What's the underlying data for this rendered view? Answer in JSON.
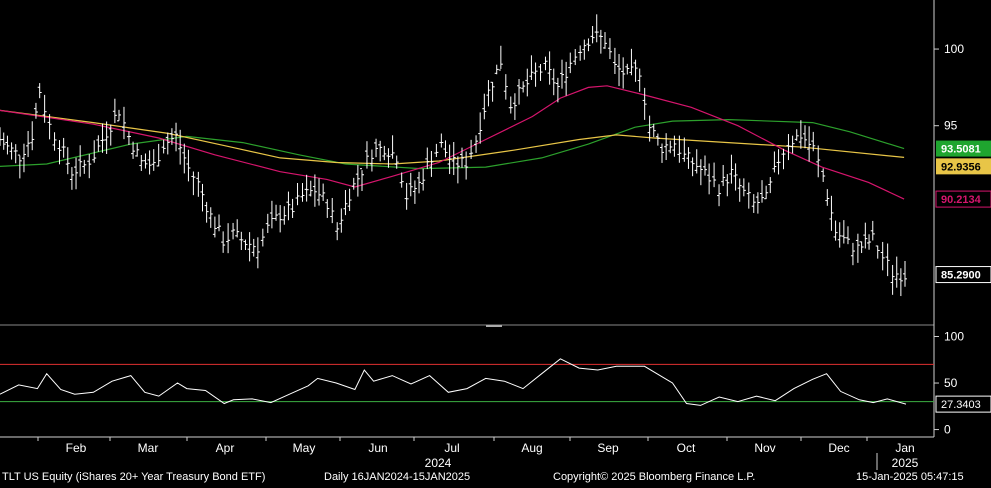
{
  "chart_data": [
    {
      "type": "line",
      "subtype": "ohlc-bars-with-moving-averages",
      "ylim": [
        82,
        103.2
      ],
      "y_ticks": [
        100,
        95
      ],
      "x_range": [
        "2024-01-16",
        "2025-01-15"
      ],
      "month_labels": [
        "Feb",
        "Mar",
        "Apr",
        "May",
        "Jun",
        "Jul",
        "Aug",
        "Sep",
        "Oct",
        "Nov",
        "Dec",
        "Jan"
      ],
      "year_labels": [
        "2024",
        "2025"
      ],
      "grid": false,
      "price_close": [
        [
          "2024-01-16",
          94.1
        ],
        [
          "2024-01-19",
          93.6
        ],
        [
          "2024-01-24",
          93.0
        ],
        [
          "2024-01-29",
          94.4
        ],
        [
          "2024-02-01",
          97.3
        ],
        [
          "2024-02-05",
          95.0
        ],
        [
          "2024-02-09",
          93.8
        ],
        [
          "2024-02-14",
          92.0
        ],
        [
          "2024-02-19",
          92.4
        ],
        [
          "2024-02-23",
          93.1
        ],
        [
          "2024-02-28",
          94.6
        ],
        [
          "2024-03-04",
          96.0
        ],
        [
          "2024-03-08",
          94.3
        ],
        [
          "2024-03-13",
          92.6
        ],
        [
          "2024-03-18",
          92.4
        ],
        [
          "2024-03-22",
          93.8
        ],
        [
          "2024-03-27",
          94.3
        ],
        [
          "2024-04-01",
          92.2
        ],
        [
          "2024-04-05",
          91.2
        ],
        [
          "2024-04-10",
          89.1
        ],
        [
          "2024-04-15",
          87.5
        ],
        [
          "2024-04-19",
          87.9
        ],
        [
          "2024-04-24",
          87.4
        ],
        [
          "2024-04-29",
          87.1
        ],
        [
          "2024-05-03",
          88.3
        ],
        [
          "2024-05-08",
          89.2
        ],
        [
          "2024-05-13",
          89.6
        ],
        [
          "2024-05-17",
          90.4
        ],
        [
          "2024-05-22",
          90.8
        ],
        [
          "2024-05-27",
          90.0
        ],
        [
          "2024-05-31",
          88.3
        ],
        [
          "2024-06-05",
          90.6
        ],
        [
          "2024-06-10",
          92.1
        ],
        [
          "2024-06-14",
          93.3
        ],
        [
          "2024-06-19",
          93.6
        ],
        [
          "2024-06-24",
          93.0
        ],
        [
          "2024-06-28",
          90.4
        ],
        [
          "2024-07-03",
          91.2
        ],
        [
          "2024-07-08",
          93.0
        ],
        [
          "2024-07-12",
          93.7
        ],
        [
          "2024-07-17",
          92.5
        ],
        [
          "2024-07-22",
          92.6
        ],
        [
          "2024-07-26",
          94.1
        ],
        [
          "2024-07-31",
          97.2
        ],
        [
          "2024-08-05",
          99.2
        ],
        [
          "2024-08-09",
          96.4
        ],
        [
          "2024-08-14",
          97.4
        ],
        [
          "2024-08-19",
          98.4
        ],
        [
          "2024-08-23",
          98.8
        ],
        [
          "2024-08-28",
          97.5
        ],
        [
          "2024-09-02",
          99.1
        ],
        [
          "2024-09-06",
          100.1
        ],
        [
          "2024-09-11",
          100.9
        ],
        [
          "2024-09-16",
          100.6
        ],
        [
          "2024-09-20",
          98.8
        ],
        [
          "2024-09-25",
          98.3
        ],
        [
          "2024-09-30",
          98.6
        ],
        [
          "2024-10-04",
          94.9
        ],
        [
          "2024-10-09",
          93.6
        ],
        [
          "2024-10-14",
          93.9
        ],
        [
          "2024-10-18",
          93.0
        ],
        [
          "2024-10-23",
          92.4
        ],
        [
          "2024-10-28",
          91.6
        ],
        [
          "2024-11-01",
          91.0
        ],
        [
          "2024-11-06",
          91.9
        ],
        [
          "2024-11-11",
          90.6
        ],
        [
          "2024-11-15",
          89.9
        ],
        [
          "2024-11-20",
          90.2
        ],
        [
          "2024-11-25",
          92.8
        ],
        [
          "2024-11-29",
          93.9
        ],
        [
          "2024-12-04",
          94.4
        ],
        [
          "2024-12-09",
          93.5
        ],
        [
          "2024-12-13",
          91.7
        ],
        [
          "2024-12-18",
          88.1
        ],
        [
          "2024-12-23",
          87.3
        ],
        [
          "2024-12-27",
          87.0
        ],
        [
          "2025-01-02",
          87.6
        ],
        [
          "2025-01-06",
          86.4
        ],
        [
          "2025-01-10",
          85.4
        ],
        [
          "2025-01-15",
          85.29
        ]
      ],
      "ma_series": [
        {
          "color": "#2ca02c",
          "last_value": 93.5081,
          "values": [
            [
              -0.08,
              92.1
            ],
            [
              0.05,
              92.5
            ],
            [
              0.14,
              93.8
            ],
            [
              0.2,
              94.3
            ],
            [
              0.26,
              93.9
            ],
            [
              0.32,
              93.1
            ],
            [
              0.37,
              92.5
            ],
            [
              0.45,
              92.2
            ],
            [
              0.52,
              92.3
            ],
            [
              0.58,
              92.9
            ],
            [
              0.63,
              93.8
            ],
            [
              0.68,
              94.9
            ],
            [
              0.72,
              95.3
            ],
            [
              0.78,
              95.4
            ],
            [
              0.87,
              95.2
            ],
            [
              0.91,
              94.6
            ],
            [
              0.968,
              93.5081
            ]
          ]
        },
        {
          "color": "#e8c547",
          "last_value": 92.9356,
          "values": [
            [
              -0.08,
              96.7
            ],
            [
              0.0,
              96.0
            ],
            [
              0.1,
              95.2
            ],
            [
              0.18,
              94.5
            ],
            [
              0.24,
              93.7
            ],
            [
              0.3,
              92.9
            ],
            [
              0.36,
              92.6
            ],
            [
              0.42,
              92.5
            ],
            [
              0.47,
              92.7
            ],
            [
              0.55,
              93.4
            ],
            [
              0.62,
              94.1
            ],
            [
              0.66,
              94.4
            ],
            [
              0.7,
              94.2
            ],
            [
              0.78,
              93.9
            ],
            [
              0.86,
              93.6
            ],
            [
              0.968,
              92.9356
            ]
          ]
        },
        {
          "color": "#d6156d",
          "last_value": 90.2134,
          "values": [
            [
              -0.08,
              96.3
            ],
            [
              0.0,
              96.0
            ],
            [
              0.1,
              95.1
            ],
            [
              0.17,
              94.2
            ],
            [
              0.23,
              93.1
            ],
            [
              0.3,
              92.0
            ],
            [
              0.35,
              91.5
            ],
            [
              0.38,
              91.0
            ],
            [
              0.42,
              91.7
            ],
            [
              0.47,
              92.6
            ],
            [
              0.52,
              94.1
            ],
            [
              0.57,
              95.6
            ],
            [
              0.6,
              96.8
            ],
            [
              0.63,
              97.5
            ],
            [
              0.65,
              97.6
            ],
            [
              0.69,
              97.0
            ],
            [
              0.74,
              96.2
            ],
            [
              0.79,
              95.0
            ],
            [
              0.84,
              93.4
            ],
            [
              0.88,
              92.3
            ],
            [
              0.93,
              91.3
            ],
            [
              0.968,
              90.2134
            ]
          ]
        }
      ],
      "labels": {
        "values": [
          "100",
          "95",
          "93.5081",
          "92.9356",
          "90.2134",
          "85.2900"
        ],
        "colors": {
          "green": "#1fa52f",
          "pink": "#d6156d",
          "gray": "#e8e8e8"
        }
      }
    },
    {
      "type": "line",
      "subtype": "oscillator",
      "ylim": [
        -8,
        107
      ],
      "y_ticks": [
        100,
        50,
        0
      ],
      "upper_band": 70,
      "lower_band": 30,
      "upper_band_color": "#e03030",
      "lower_band_color": "#3cb043",
      "last_value": 27.3403,
      "last_value_label": "27.3403",
      "values": [
        [
          0.0,
          38
        ],
        [
          0.02,
          48
        ],
        [
          0.04,
          44
        ],
        [
          0.05,
          60
        ],
        [
          0.065,
          43
        ],
        [
          0.08,
          38
        ],
        [
          0.1,
          40
        ],
        [
          0.12,
          52
        ],
        [
          0.14,
          58
        ],
        [
          0.155,
          40
        ],
        [
          0.17,
          36
        ],
        [
          0.19,
          50
        ],
        [
          0.2,
          44
        ],
        [
          0.22,
          42
        ],
        [
          0.24,
          28
        ],
        [
          0.25,
          32
        ],
        [
          0.27,
          33
        ],
        [
          0.29,
          29
        ],
        [
          0.31,
          38
        ],
        [
          0.33,
          47
        ],
        [
          0.34,
          55
        ],
        [
          0.36,
          50
        ],
        [
          0.38,
          43
        ],
        [
          0.39,
          64
        ],
        [
          0.4,
          52
        ],
        [
          0.42,
          58
        ],
        [
          0.44,
          49
        ],
        [
          0.46,
          58
        ],
        [
          0.48,
          40
        ],
        [
          0.5,
          44
        ],
        [
          0.52,
          55
        ],
        [
          0.54,
          52
        ],
        [
          0.56,
          44
        ],
        [
          0.58,
          60
        ],
        [
          0.6,
          76
        ],
        [
          0.62,
          66
        ],
        [
          0.64,
          64
        ],
        [
          0.66,
          68
        ],
        [
          0.69,
          68
        ],
        [
          0.72,
          50
        ],
        [
          0.735,
          28
        ],
        [
          0.75,
          26
        ],
        [
          0.77,
          35
        ],
        [
          0.79,
          30
        ],
        [
          0.81,
          36
        ],
        [
          0.83,
          31
        ],
        [
          0.85,
          44
        ],
        [
          0.87,
          54
        ],
        [
          0.885,
          60
        ],
        [
          0.9,
          41
        ],
        [
          0.92,
          32
        ],
        [
          0.935,
          29
        ],
        [
          0.95,
          33
        ],
        [
          0.97,
          27.3403
        ]
      ]
    }
  ],
  "footer": {
    "security": "TLT US Equity (iShares 20+ Year Treasury Bond ETF)",
    "range": "Daily 16JAN2024-15JAN2025",
    "copyright": "Copyright© 2025 Bloomberg Finance L.P.",
    "timestamp": "15-Jan-2025 05:47:15"
  }
}
